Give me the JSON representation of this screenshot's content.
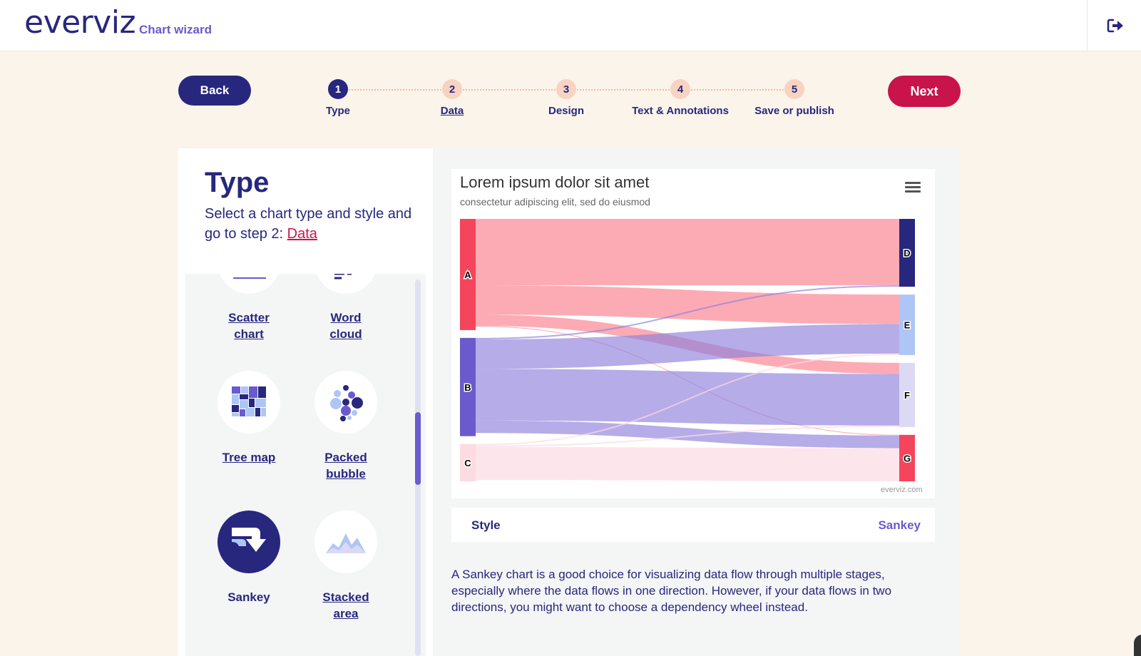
{
  "header": {
    "logo": "everviz",
    "subtitle": "Chart wizard",
    "logout_icon": "logout-icon"
  },
  "nav": {
    "back_label": "Back",
    "next_label": "Next",
    "steps": [
      {
        "number": "1",
        "label": "Type",
        "active": true
      },
      {
        "number": "2",
        "label": "Data",
        "active": false
      },
      {
        "number": "3",
        "label": "Design",
        "active": false
      },
      {
        "number": "4",
        "label": "Text & Annotations",
        "active": false
      },
      {
        "number": "5",
        "label": "Save or publish",
        "active": false
      }
    ]
  },
  "type_panel": {
    "title": "Type",
    "description": "Select a chart type and style and go to step 2:",
    "link": "Data",
    "tiles": [
      {
        "label_line1": "Scatter",
        "label_line2": "chart",
        "icon": "scatter-chart-icon"
      },
      {
        "label_line1": "Word",
        "label_line2": "cloud",
        "icon": "word-cloud-icon"
      },
      {
        "label_line1": "Tree map",
        "label_line2": "",
        "icon": "tree-map-icon"
      },
      {
        "label_line1": "Packed",
        "label_line2": "bubble",
        "icon": "packed-bubble-icon"
      },
      {
        "label_line1": "Sankey",
        "label_line2": "",
        "icon": "sankey-icon",
        "selected": true
      },
      {
        "label_line1": "Stacked",
        "label_line2": "area",
        "icon": "stacked-area-icon"
      }
    ]
  },
  "preview": {
    "chart_title": "Lorem ipsum dolor sit amet",
    "chart_subtitle": "consectetur adipiscing elit, sed do eiusmod",
    "credit": "everviz.com",
    "menu_icon": "hamburger-menu-icon"
  },
  "style": {
    "label": "Style",
    "value": "Sankey"
  },
  "description": "A Sankey chart is a good choice for visualizing data flow through multiple stages, especially where the data flows in one direction. However, if your data flows in two directions, you might want to choose a dependency wheel instead.",
  "colors": {
    "navy": "#28277e",
    "accent": "#c8144b",
    "purple": "#6a5acd",
    "background": "#faf4ea"
  },
  "chart_data": {
    "type": "sankey",
    "title": "Lorem ipsum dolor sit amet",
    "subtitle": "consectetur adipiscing elit, sed do eiusmod",
    "nodes": [
      {
        "id": "A",
        "color": "#f5455c"
      },
      {
        "id": "B",
        "color": "#6a5acd"
      },
      {
        "id": "C",
        "color": "#fcdbe2"
      },
      {
        "id": "D",
        "color": "#28277e"
      },
      {
        "id": "E",
        "color": "#aec6f6"
      },
      {
        "id": "F",
        "color": "#dcd9f5"
      },
      {
        "id": "G",
        "color": "#f5455c"
      }
    ],
    "links": [
      {
        "from": "A",
        "to": "D",
        "weight": 9
      },
      {
        "from": "A",
        "to": "E",
        "weight": 4
      },
      {
        "from": "A",
        "to": "F",
        "weight": 1.5
      },
      {
        "from": "A",
        "to": "G",
        "weight": 0.1
      },
      {
        "from": "B",
        "to": "D",
        "weight": 0.2
      },
      {
        "from": "B",
        "to": "E",
        "weight": 4
      },
      {
        "from": "B",
        "to": "F",
        "weight": 7
      },
      {
        "from": "B",
        "to": "G",
        "weight": 1.7
      },
      {
        "from": "C",
        "to": "E",
        "weight": 0.2
      },
      {
        "from": "C",
        "to": "F",
        "weight": 0.2
      },
      {
        "from": "C",
        "to": "G",
        "weight": 4.5
      }
    ]
  }
}
